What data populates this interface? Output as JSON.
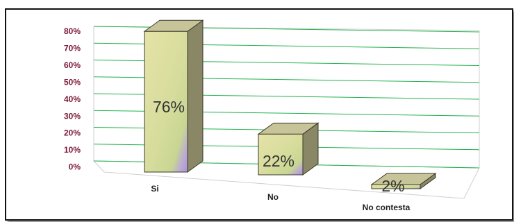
{
  "chart_data": {
    "type": "bar",
    "categories": [
      "Si",
      "No",
      "No contesta"
    ],
    "values": [
      76,
      22,
      2
    ],
    "data_labels": [
      "76%",
      "22%",
      "2%"
    ],
    "y_ticks": [
      "0%",
      "10%",
      "20%",
      "30%",
      "40%",
      "50%",
      "60%",
      "70%",
      "80%"
    ],
    "ylim": [
      0,
      80
    ],
    "grid": true,
    "style": "3d-column",
    "colors": {
      "bar_front_top": "#e3e1a9",
      "bar_front_bottom": "#c9d893",
      "bar_accent": "#b29ad4",
      "bar_side": "#8a8766",
      "bar_top": "#c7c49a",
      "gridline": "#22b14c",
      "wall": "#cfcfcf",
      "ytick_text": "#7a1634"
    }
  }
}
